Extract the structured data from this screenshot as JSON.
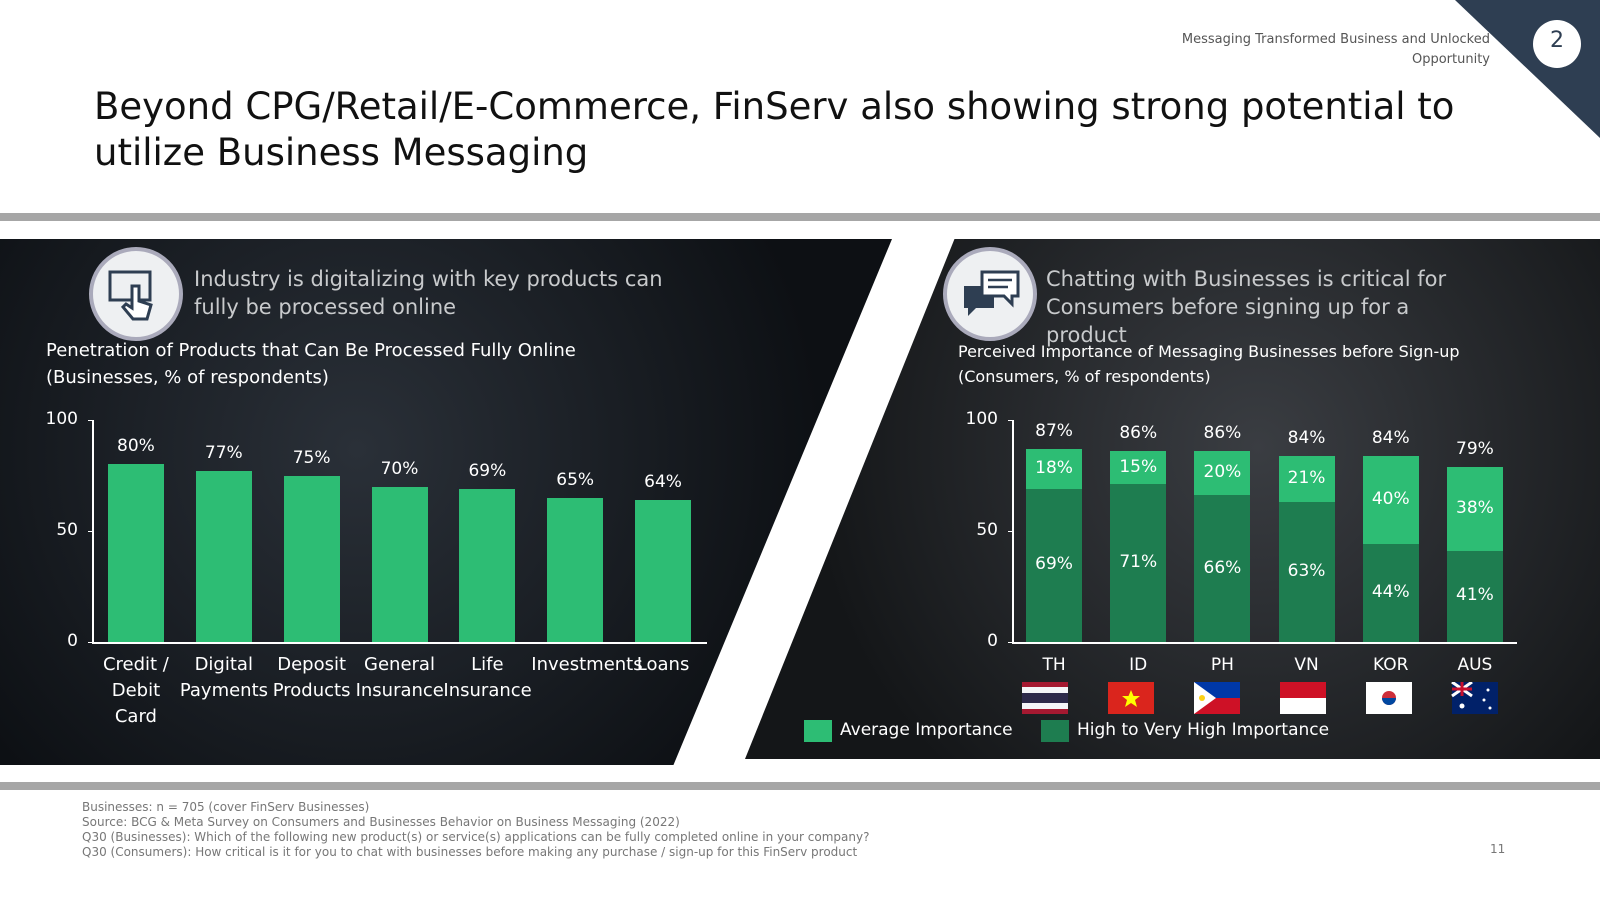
{
  "header": {
    "section": "Messaging Transformed Business and Unlocked Opportunity",
    "page_badge": "2",
    "title": "Beyond CPG/Retail/E-Commerce, FinServ also showing strong potential to utilize Business Messaging"
  },
  "panels": [
    {
      "heading": "Industry is digitalizing with key products can fully be processed online"
    },
    {
      "heading": "Chatting with Businesses is critical for Consumers before signing up for a product"
    }
  ],
  "chart_data": [
    {
      "type": "bar",
      "title": "Penetration of Products that Can Be Processed Fully Online",
      "subtitle": "(Businesses, % of respondents)",
      "categories": [
        "Credit / Debit Card",
        "Digital Payments",
        "Deposit Products",
        "General Insurance",
        "Life Insurance",
        "Investments",
        "Loans"
      ],
      "values": [
        80,
        77,
        75,
        70,
        69,
        65,
        64
      ],
      "value_labels": [
        "80%",
        "77%",
        "75%",
        "70%",
        "69%",
        "65%",
        "64%"
      ],
      "color": "#2dbd74",
      "ylim": [
        0,
        100
      ],
      "yticks": [
        0,
        50,
        100
      ],
      "grid": false
    },
    {
      "type": "stacked_bar",
      "title": "Perceived Importance of Messaging Businesses before Sign-up",
      "subtitle": "(Consumers, % of respondents)",
      "categories": [
        "TH",
        "ID",
        "PH",
        "VN",
        "KOR",
        "AUS"
      ],
      "series": [
        {
          "name": "High to Very High Importance",
          "color": "#1e7d50",
          "values": [
            69,
            71,
            66,
            63,
            44,
            41
          ],
          "value_labels": [
            "69%",
            "71%",
            "66%",
            "63%",
            "44%",
            "41%"
          ]
        },
        {
          "name": "Average Importance",
          "color": "#2dbd74",
          "values": [
            18,
            15,
            20,
            21,
            40,
            38
          ],
          "value_labels": [
            "18%",
            "15%",
            "20%",
            "21%",
            "40%",
            "38%"
          ]
        }
      ],
      "totals": [
        87,
        86,
        86,
        84,
        84,
        79
      ],
      "total_labels": [
        "87%",
        "86%",
        "86%",
        "84%",
        "84%",
        "79%"
      ],
      "ylim": [
        0,
        100
      ],
      "yticks": [
        0,
        50,
        100
      ],
      "grid": false,
      "legend": "bottom"
    }
  ],
  "footer": {
    "notes": [
      "Businesses: n = 705 (cover FinServ Businesses)",
      "Source: BCG & Meta Survey on Consumers and Businesses Behavior on Business Messaging (2022)",
      "Q30 (Businesses): Which of the following new product(s) or service(s) applications can be fully completed online in your company?",
      "Q30 (Consumers): How critical is it for you to chat with businesses before making any purchase / sign-up for this FinServ product"
    ],
    "page_number": "11"
  }
}
